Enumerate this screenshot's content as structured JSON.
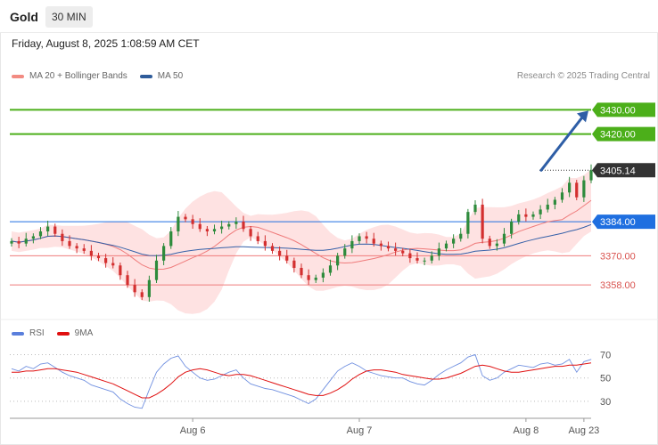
{
  "header": {
    "symbol": "Gold",
    "timeframe": "30 MIN",
    "datetime": "Friday, August 8, 2025 1:08:59 AM CET",
    "credit": "Research © 2025 Trading Central"
  },
  "legend": [
    {
      "name": "MA 20 + Bollinger Bands",
      "color": "#f28b82"
    },
    {
      "name": "MA 50",
      "color": "#2f5c9a"
    }
  ],
  "rsi_legend": [
    {
      "name": "RSI",
      "color": "#5a7fdc"
    },
    {
      "name": "9MA",
      "color": "#e01010"
    }
  ],
  "colors": {
    "resistance": "#4caf1a",
    "pivot": "#1f6fe0",
    "support": "#ef7b7b",
    "current": "#333333",
    "arrow": "#2e5ea6",
    "bull": "#2e8b3c",
    "bear": "#d32f2f",
    "band": "#fdd8d8",
    "ma20": "#ef7b7b",
    "ma50": "#3560a8",
    "rsi": "#6f8fe0",
    "rsi9": "#e01010"
  },
  "chart_data": {
    "type": "candlestick",
    "price_axis": {
      "min": 3350,
      "max": 3440
    },
    "levels": [
      {
        "name": "resistance-2",
        "value": 3430.0,
        "label": "3430.00",
        "kind": "resistance"
      },
      {
        "name": "resistance-1",
        "value": 3420.0,
        "label": "3420.00",
        "kind": "resistance"
      },
      {
        "name": "current-price",
        "value": 3405.14,
        "label": "3405.14",
        "kind": "current"
      },
      {
        "name": "pivot",
        "value": 3384.0,
        "label": "3384.00",
        "kind": "pivot"
      },
      {
        "name": "support-1",
        "value": 3370.0,
        "label": "3370.00",
        "kind": "support"
      },
      {
        "name": "support-2",
        "value": 3358.0,
        "label": "3358.00",
        "kind": "support"
      }
    ],
    "x_ticks": [
      {
        "label": "Aug 6",
        "index": 25
      },
      {
        "label": "Aug 7",
        "index": 48
      },
      {
        "label": "Aug 8",
        "index": 71
      },
      {
        "label": "Aug 23",
        "index": 79
      }
    ],
    "x_count": 81,
    "closes": [
      3376,
      3375,
      3377,
      3378,
      3380,
      3382,
      3379,
      3376,
      3374,
      3373,
      3372,
      3370,
      3369,
      3367,
      3366,
      3362,
      3358,
      3355,
      3353,
      3360,
      3368,
      3374,
      3380,
      3386,
      3385,
      3383,
      3381,
      3380,
      3381,
      3382,
      3383,
      3384,
      3381,
      3378,
      3376,
      3374,
      3372,
      3370,
      3368,
      3365,
      3362,
      3360,
      3361,
      3363,
      3366,
      3370,
      3373,
      3376,
      3378,
      3377,
      3375,
      3374,
      3373,
      3372,
      3371,
      3369,
      3368,
      3368,
      3370,
      3373,
      3375,
      3377,
      3379,
      3388,
      3391,
      3377,
      3374,
      3375,
      3379,
      3384,
      3387,
      3386,
      3387,
      3389,
      3391,
      3393,
      3396,
      3400,
      3394,
      3401,
      3405.14
    ],
    "rsi_axis": {
      "min": 20,
      "max": 75,
      "ticks": [
        70,
        50,
        30
      ]
    },
    "rsi": [
      58,
      56,
      60,
      58,
      62,
      63,
      59,
      55,
      52,
      50,
      48,
      44,
      42,
      40,
      38,
      32,
      28,
      25,
      24,
      40,
      55,
      62,
      67,
      69,
      60,
      55,
      50,
      48,
      49,
      52,
      55,
      57,
      50,
      45,
      43,
      41,
      40,
      38,
      36,
      34,
      31,
      28,
      32,
      40,
      48,
      56,
      60,
      63,
      60,
      56,
      54,
      52,
      51,
      50,
      50,
      47,
      45,
      44,
      48,
      53,
      57,
      60,
      63,
      68,
      70,
      52,
      48,
      50,
      55,
      58,
      61,
      60,
      59,
      62,
      63,
      61,
      62,
      66,
      55,
      64,
      66
    ],
    "rsi_ma": [
      55,
      55,
      56,
      56,
      57,
      58,
      58,
      57,
      56,
      55,
      53,
      51,
      49,
      47,
      45,
      42,
      39,
      36,
      33,
      33,
      36,
      40,
      45,
      51,
      55,
      57,
      58,
      57,
      55,
      53,
      52,
      53,
      53,
      52,
      50,
      48,
      46,
      44,
      42,
      40,
      38,
      36,
      35,
      35,
      37,
      40,
      44,
      49,
      53,
      56,
      57,
      57,
      56,
      55,
      53,
      52,
      51,
      50,
      49,
      49,
      50,
      52,
      54,
      57,
      60,
      61,
      60,
      58,
      56,
      55,
      55,
      56,
      57,
      58,
      59,
      60,
      60,
      61,
      61,
      62,
      63
    ]
  }
}
